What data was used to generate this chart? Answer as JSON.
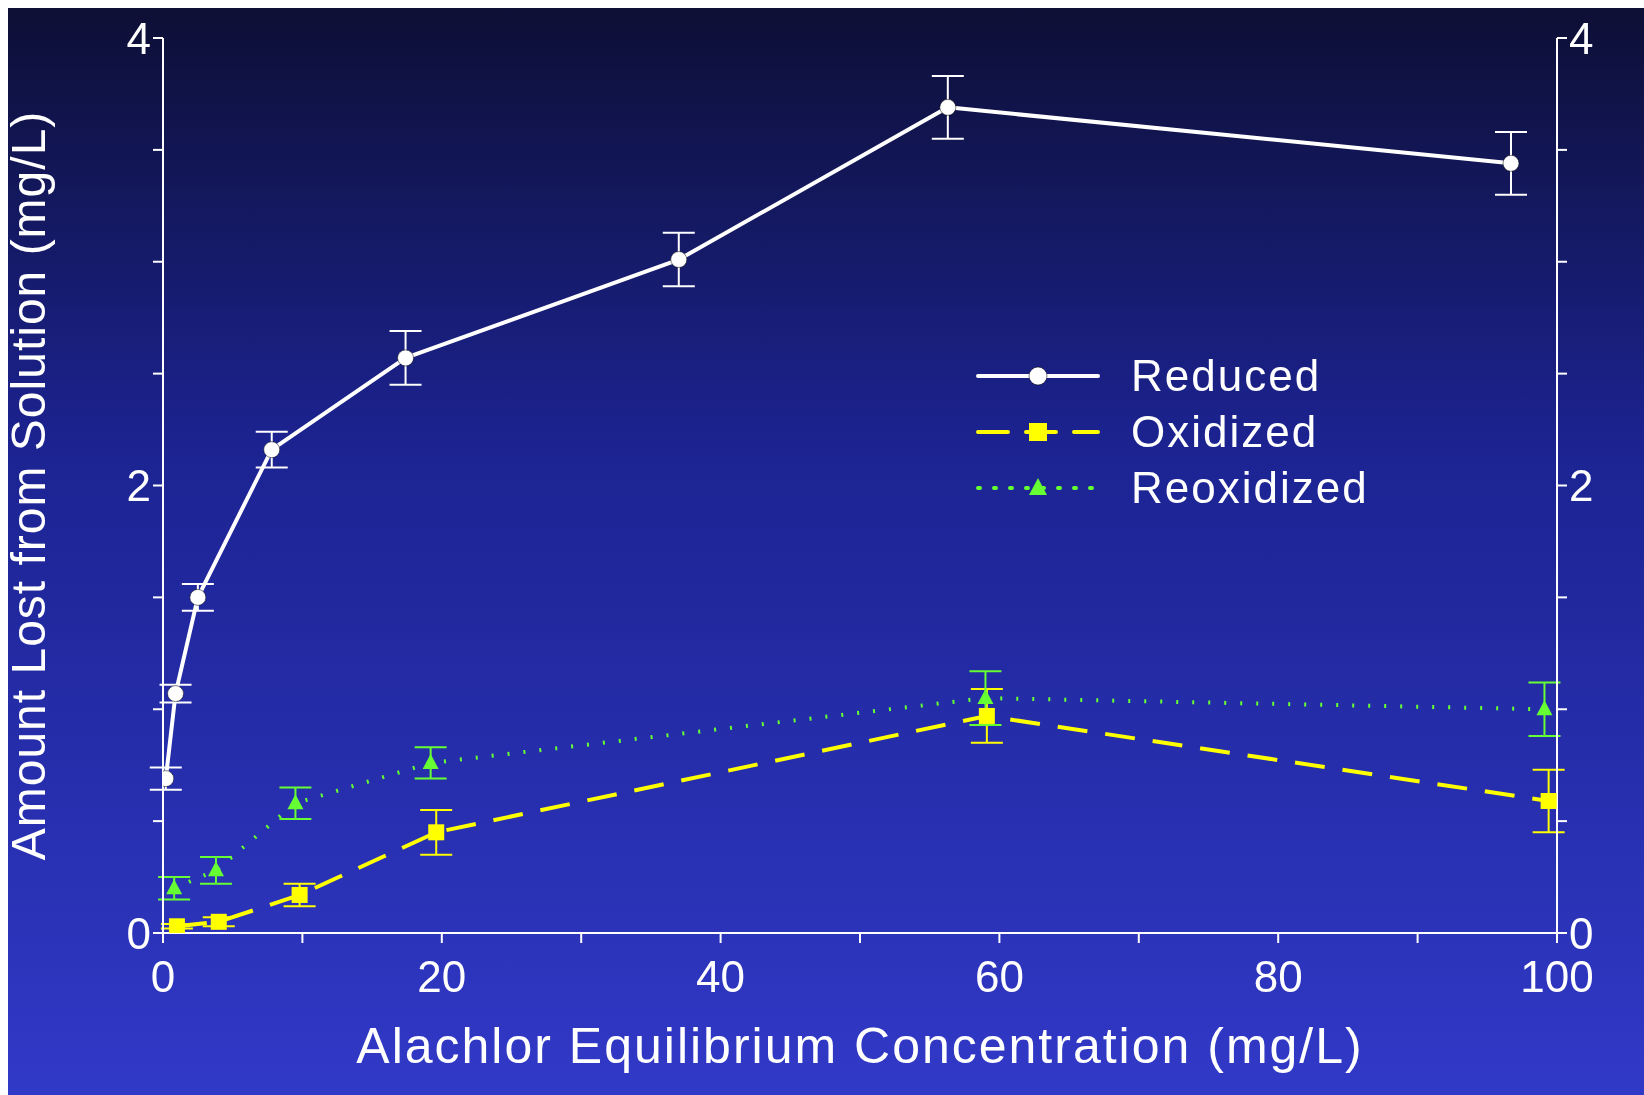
{
  "chart_data": {
    "type": "line",
    "xlabel": "Alachlor Equilibrium Concentration (mg/L)",
    "ylabel": "Amount Lost from Solution (mg/L)",
    "xlim": [
      0,
      100
    ],
    "xticks": [
      0,
      {
        "value": 10,
        "label": null
      },
      20,
      {
        "value": 30,
        "label": null
      },
      40,
      {
        "value": 50,
        "label": null
      },
      60,
      {
        "value": 70,
        "label": null
      },
      80,
      {
        "value": 90,
        "label": null
      },
      100
    ],
    "ylim": [
      0,
      4
    ],
    "yticks": [
      0,
      {
        "value": 0.5,
        "label": null
      },
      {
        "value": 1,
        "label": null
      },
      {
        "value": 1.5,
        "label": null
      },
      2,
      {
        "value": 2.5,
        "label": null
      },
      {
        "value": 3,
        "label": null
      },
      {
        "value": 3.5,
        "label": null
      },
      4
    ],
    "y2lim": [
      0,
      4
    ],
    "y2ticks": [
      0,
      {
        "value": 0.5,
        "label": null
      },
      {
        "value": 1,
        "label": null
      },
      {
        "value": 1.5,
        "label": null
      },
      2,
      {
        "value": 2.5,
        "label": null
      },
      {
        "value": 3,
        "label": null
      },
      {
        "value": 3.5,
        "label": null
      },
      4
    ],
    "grid": false,
    "legend": "right",
    "series": [
      {
        "name": "Reduced",
        "color": "#ffffff",
        "marker": "circle",
        "line_style": "solid",
        "x": [
          0.2,
          0.9,
          2.5,
          7.8,
          17.4,
          37.0,
          56.3,
          96.7
        ],
        "values": [
          0.69,
          1.07,
          1.5,
          2.16,
          2.57,
          3.01,
          3.69,
          3.44
        ],
        "errors": [
          0.05,
          0.04,
          0.06,
          0.08,
          0.12,
          0.12,
          0.14,
          0.14
        ]
      },
      {
        "name": "Oxidized",
        "color": "#ffff00",
        "marker": "square",
        "line_style": "dashed",
        "x": [
          1.0,
          4.0,
          9.8,
          19.6,
          59.1,
          99.4
        ],
        "values": [
          0.03,
          0.05,
          0.17,
          0.45,
          0.97,
          0.59
        ],
        "errors": [
          0.01,
          0.02,
          0.05,
          0.1,
          0.12,
          0.14
        ]
      },
      {
        "name": "Reoxidized",
        "color": "#66ff33",
        "marker": "triangle",
        "line_style": "dotted",
        "x": [
          0.8,
          3.8,
          9.5,
          19.2,
          59.0,
          99.1
        ],
        "values": [
          0.2,
          0.28,
          0.58,
          0.76,
          1.05,
          1.0
        ],
        "errors": [
          0.05,
          0.06,
          0.07,
          0.07,
          0.12,
          0.12
        ]
      }
    ]
  }
}
